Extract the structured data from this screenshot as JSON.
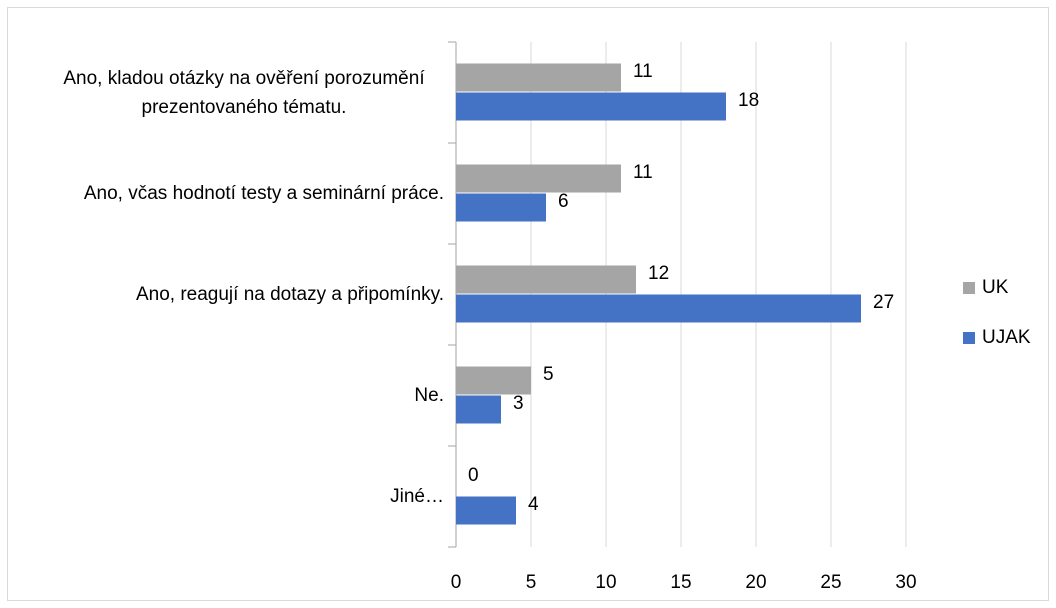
{
  "chart_data": {
    "type": "barh",
    "categories": [
      "Ano, kladou otázky na ověření porozumění prezentovaného tématu.",
      "Ano, včas hodnotí testy a seminární práce.",
      "Ano, reagují na dotazy a připomínky.",
      "Ne.",
      "Jiné…"
    ],
    "series": [
      {
        "name": "UK",
        "color": "#a5a5a5",
        "values": [
          11,
          11,
          12,
          5,
          0
        ]
      },
      {
        "name": "UJAK",
        "color": "#4472c4",
        "values": [
          18,
          6,
          27,
          3,
          4
        ]
      }
    ],
    "xlim": [
      0,
      30
    ],
    "xticks": [
      0,
      5,
      10,
      15,
      20,
      25,
      30
    ],
    "grid": true,
    "legend": "right"
  }
}
